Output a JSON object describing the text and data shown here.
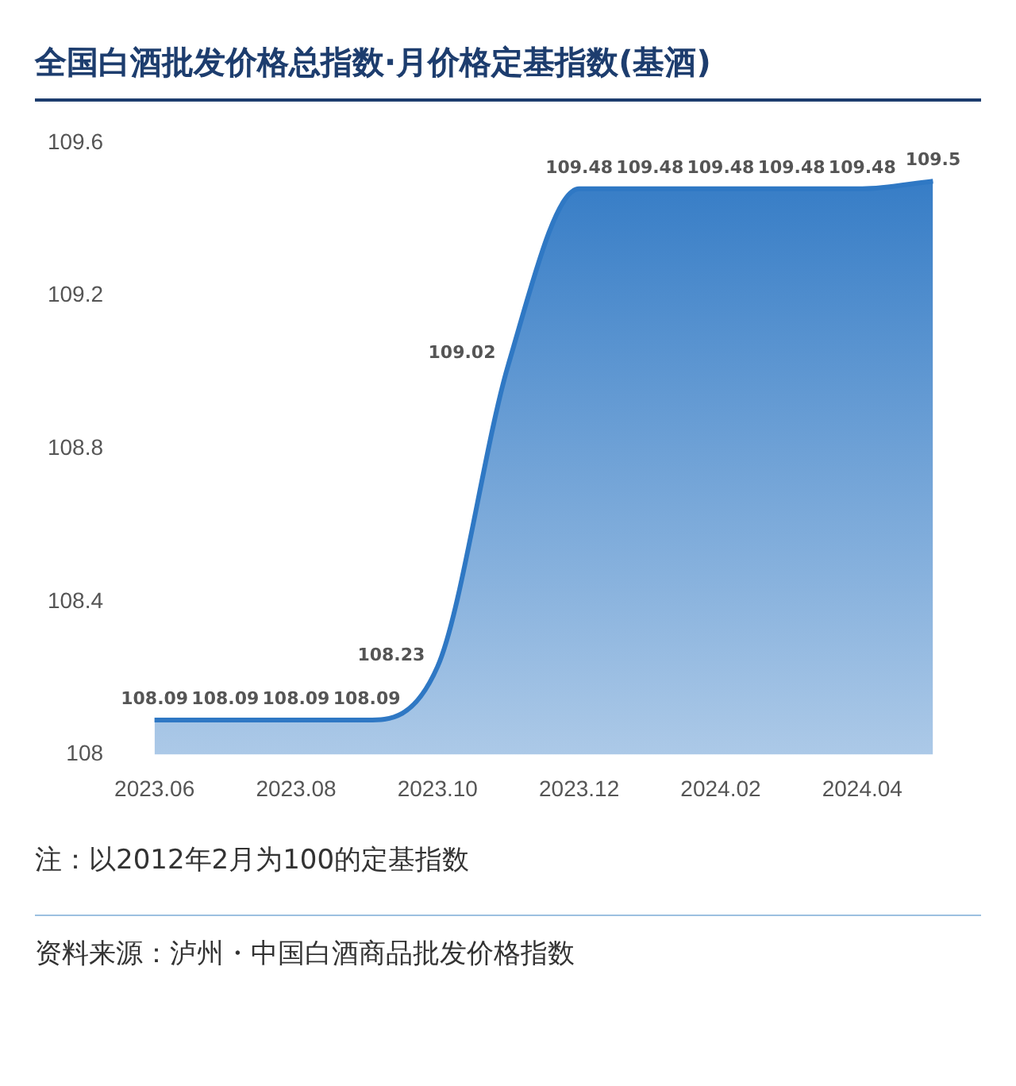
{
  "chart_data": {
    "type": "area",
    "title": "全国白酒批发价格总指数·月价格定基指数(基酒)",
    "categories": [
      "2023.06",
      null,
      "2023.08",
      null,
      "2023.10",
      null,
      "2023.12",
      null,
      "2024.02",
      null,
      "2024.04",
      null
    ],
    "series": [
      {
        "color": "#2f78c4",
        "values": [
          108.09,
          108.09,
          108.09,
          108.09,
          108.23,
          109.02,
          109.48,
          109.48,
          109.48,
          109.48,
          109.48,
          109.5
        ]
      }
    ],
    "value_labels": [
      "108.09",
      "108.09",
      "108.09",
      "108.09",
      "108.23",
      "109.02",
      "109.48",
      "109.48",
      "109.48",
      "109.48",
      "109.48",
      "109.5"
    ],
    "ylim": [
      108,
      109.6
    ],
    "yticks": [
      108,
      108.4,
      108.8,
      109.2,
      109.6
    ],
    "grid": false,
    "legend": false,
    "annotations": [
      "注：以2012年2月为100的定基指数",
      "资料来源：泸州・中国白酒商品批发价格指数"
    ]
  }
}
